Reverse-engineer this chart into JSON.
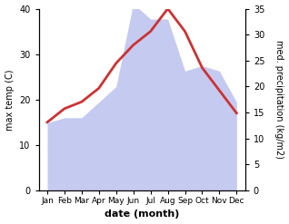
{
  "months": [
    "Jan",
    "Feb",
    "Mar",
    "Apr",
    "May",
    "Jun",
    "Jul",
    "Aug",
    "Sep",
    "Oct",
    "Nov",
    "Dec"
  ],
  "x": [
    0,
    1,
    2,
    3,
    4,
    5,
    6,
    7,
    8,
    9,
    10,
    11
  ],
  "temp": [
    15.0,
    18.0,
    19.5,
    22.5,
    28.0,
    32.0,
    35.0,
    40.0,
    35.0,
    27.0,
    22.0,
    17.0
  ],
  "precip": [
    13.0,
    14.0,
    14.0,
    17.0,
    20.0,
    36.0,
    33.0,
    33.0,
    23.0,
    24.0,
    23.0,
    17.0
  ],
  "temp_color": "#cc3333",
  "precip_fill_color": "#c5caf0",
  "temp_ylim": [
    0,
    40
  ],
  "precip_ylim": [
    0,
    35
  ],
  "temp_yticks": [
    0,
    10,
    20,
    30,
    40
  ],
  "precip_yticks": [
    0,
    5,
    10,
    15,
    20,
    25,
    30,
    35
  ],
  "ylabel_left": "max temp (C)",
  "ylabel_right": "med. precipitation (kg/m2)",
  "xlabel": "date (month)",
  "bg_color": "#ffffff",
  "line_width": 2.0,
  "figsize": [
    3.18,
    2.47
  ],
  "dpi": 100
}
